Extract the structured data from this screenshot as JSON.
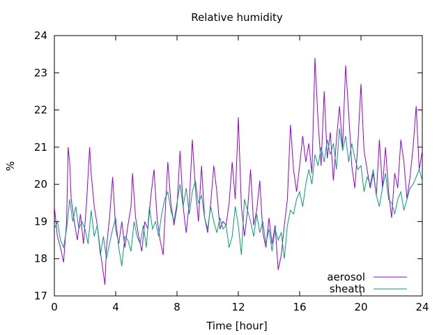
{
  "chart_data": {
    "type": "line",
    "title": "Relative humidity",
    "xlabel": "Time [hour]",
    "ylabel": "%",
    "xlim": [
      0,
      24
    ],
    "ylim": [
      17,
      24
    ],
    "xticks": [
      0,
      4,
      8,
      12,
      16,
      20,
      24
    ],
    "yticks": [
      17,
      18,
      19,
      20,
      21,
      22,
      23,
      24
    ],
    "grid": false,
    "legend_position": "bottom-right",
    "series": [
      {
        "name": "aerosol",
        "color": "#9400d3",
        "x": [
          0,
          0.2,
          0.4,
          0.6,
          0.8,
          0.9,
          1.0,
          1.1,
          1.3,
          1.5,
          1.7,
          1.9,
          2.1,
          2.3,
          2.4,
          2.6,
          2.8,
          3.0,
          3.2,
          3.3,
          3.4,
          3.6,
          3.8,
          4.0,
          4.2,
          4.4,
          4.6,
          4.8,
          5.0,
          5.1,
          5.3,
          5.5,
          5.7,
          5.9,
          6.1,
          6.3,
          6.5,
          6.7,
          6.9,
          7.1,
          7.2,
          7.4,
          7.6,
          7.8,
          8.0,
          8.2,
          8.4,
          8.6,
          8.8,
          9.0,
          9.2,
          9.4,
          9.6,
          9.8,
          10.0,
          10.2,
          10.4,
          10.6,
          10.8,
          11.0,
          11.2,
          11.4,
          11.6,
          11.8,
          12.0,
          12.2,
          12.4,
          12.6,
          12.8,
          13.0,
          13.2,
          13.4,
          13.6,
          13.8,
          14.0,
          14.2,
          14.4,
          14.6,
          14.8,
          15.0,
          15.2,
          15.4,
          15.6,
          15.8,
          16.0,
          16.2,
          16.4,
          16.6,
          16.8,
          17.0,
          17.2,
          17.4,
          17.6,
          17.8,
          18.0,
          18.2,
          18.4,
          18.6,
          18.8,
          19.0,
          19.2,
          19.4,
          19.6,
          19.8,
          20.0,
          20.2,
          20.4,
          20.6,
          20.8,
          21.0,
          21.2,
          21.4,
          21.6,
          21.8,
          22.0,
          22.2,
          22.4,
          22.6,
          22.8,
          23.0,
          23.2,
          23.4,
          23.6,
          23.8,
          24.0
        ],
        "values": [
          19.4,
          18.6,
          18.3,
          17.9,
          19.0,
          21.0,
          20.6,
          19.6,
          19.0,
          18.5,
          19.2,
          18.4,
          19.5,
          21.0,
          20.3,
          19.4,
          18.9,
          18.2,
          17.6,
          17.3,
          18.3,
          19.1,
          20.2,
          18.8,
          18.4,
          19.0,
          18.3,
          18.9,
          19.4,
          20.3,
          19.1,
          18.6,
          18.2,
          19.0,
          18.8,
          19.7,
          20.4,
          19.1,
          18.5,
          18.1,
          19.0,
          20.6,
          19.5,
          18.9,
          19.4,
          20.9,
          19.4,
          18.7,
          19.5,
          21.2,
          19.9,
          19.0,
          20.5,
          19.1,
          18.7,
          19.5,
          20.5,
          19.8,
          18.8,
          19.0,
          18.9,
          19.5,
          20.6,
          19.6,
          21.8,
          19.4,
          18.6,
          19.3,
          20.4,
          18.9,
          19.3,
          20.1,
          18.7,
          18.3,
          19.1,
          18.4,
          18.9,
          17.7,
          18.1,
          18.9,
          19.6,
          21.6,
          20.4,
          19.8,
          20.5,
          21.3,
          20.6,
          21.1,
          20.3,
          23.4,
          21.7,
          20.5,
          22.5,
          20.7,
          21.4,
          20.1,
          21.2,
          22.1,
          21.0,
          23.2,
          21.9,
          20.5,
          19.9,
          21.1,
          22.7,
          20.9,
          20.4,
          19.9,
          20.3,
          19.7,
          21.2,
          19.9,
          21.0,
          19.8,
          19.1,
          20.3,
          19.9,
          21.2,
          20.6,
          19.6,
          20.2,
          21.0,
          22.1,
          20.4,
          20.9
        ]
      },
      {
        "name": "sheath",
        "color": "#009e73",
        "x": [
          0,
          0.2,
          0.4,
          0.6,
          0.8,
          1.0,
          1.2,
          1.4,
          1.6,
          1.8,
          2.0,
          2.2,
          2.4,
          2.6,
          2.8,
          3.0,
          3.2,
          3.4,
          3.6,
          3.8,
          4.0,
          4.2,
          4.4,
          4.6,
          4.8,
          5.0,
          5.2,
          5.4,
          5.6,
          5.8,
          6.0,
          6.2,
          6.4,
          6.6,
          6.8,
          7.0,
          7.2,
          7.4,
          7.6,
          7.8,
          8.0,
          8.2,
          8.4,
          8.6,
          8.8,
          9.0,
          9.2,
          9.4,
          9.6,
          9.8,
          10.0,
          10.2,
          10.4,
          10.6,
          10.8,
          11.0,
          11.2,
          11.4,
          11.6,
          11.8,
          12.0,
          12.2,
          12.4,
          12.6,
          12.8,
          13.0,
          13.2,
          13.4,
          13.6,
          13.8,
          14.0,
          14.2,
          14.4,
          14.6,
          14.8,
          15.0,
          15.2,
          15.4,
          15.6,
          15.8,
          16.0,
          16.2,
          16.4,
          16.6,
          16.8,
          17.0,
          17.2,
          17.4,
          17.6,
          17.8,
          18.0,
          18.2,
          18.4,
          18.6,
          18.8,
          19.0,
          19.2,
          19.4,
          19.6,
          19.8,
          20.0,
          20.2,
          20.4,
          20.6,
          20.8,
          21.0,
          21.2,
          21.4,
          21.6,
          21.8,
          22.0,
          22.2,
          22.4,
          22.6,
          22.8,
          23.0,
          23.2,
          23.4,
          23.6,
          23.8,
          24.0
        ],
        "values": [
          18.8,
          19.0,
          18.5,
          18.3,
          18.8,
          19.6,
          19.0,
          19.4,
          18.8,
          19.0,
          18.8,
          18.4,
          19.3,
          18.6,
          18.9,
          18.1,
          18.6,
          18.0,
          18.4,
          18.8,
          19.1,
          18.3,
          17.8,
          18.6,
          18.5,
          18.2,
          19.0,
          18.6,
          18.4,
          18.9,
          18.3,
          19.4,
          18.8,
          19.0,
          18.6,
          19.2,
          19.6,
          19.8,
          19.3,
          19.0,
          19.5,
          20.0,
          19.4,
          19.9,
          19.2,
          19.8,
          20.1,
          19.5,
          19.7,
          19.1,
          18.8,
          19.4,
          19.0,
          18.7,
          19.1,
          18.8,
          18.9,
          18.3,
          18.6,
          19.4,
          18.9,
          18.1,
          19.6,
          19.3,
          19.0,
          18.6,
          19.2,
          18.7,
          19.0,
          18.4,
          18.8,
          18.2,
          18.8,
          18.5,
          18.7,
          18.0,
          18.9,
          19.3,
          19.2,
          19.6,
          19.8,
          19.4,
          20.0,
          20.4,
          20.0,
          20.8,
          20.5,
          21.0,
          20.6,
          21.2,
          20.8,
          21.1,
          20.4,
          21.5,
          20.9,
          21.3,
          20.6,
          21.1,
          20.7,
          20.4,
          20.5,
          19.8,
          20.2,
          20.0,
          20.4,
          19.7,
          19.4,
          19.9,
          20.3,
          19.6,
          19.5,
          19.2,
          19.6,
          19.8,
          19.3,
          19.6,
          19.9,
          20.0,
          20.2,
          20.4,
          20.1
        ]
      }
    ]
  }
}
